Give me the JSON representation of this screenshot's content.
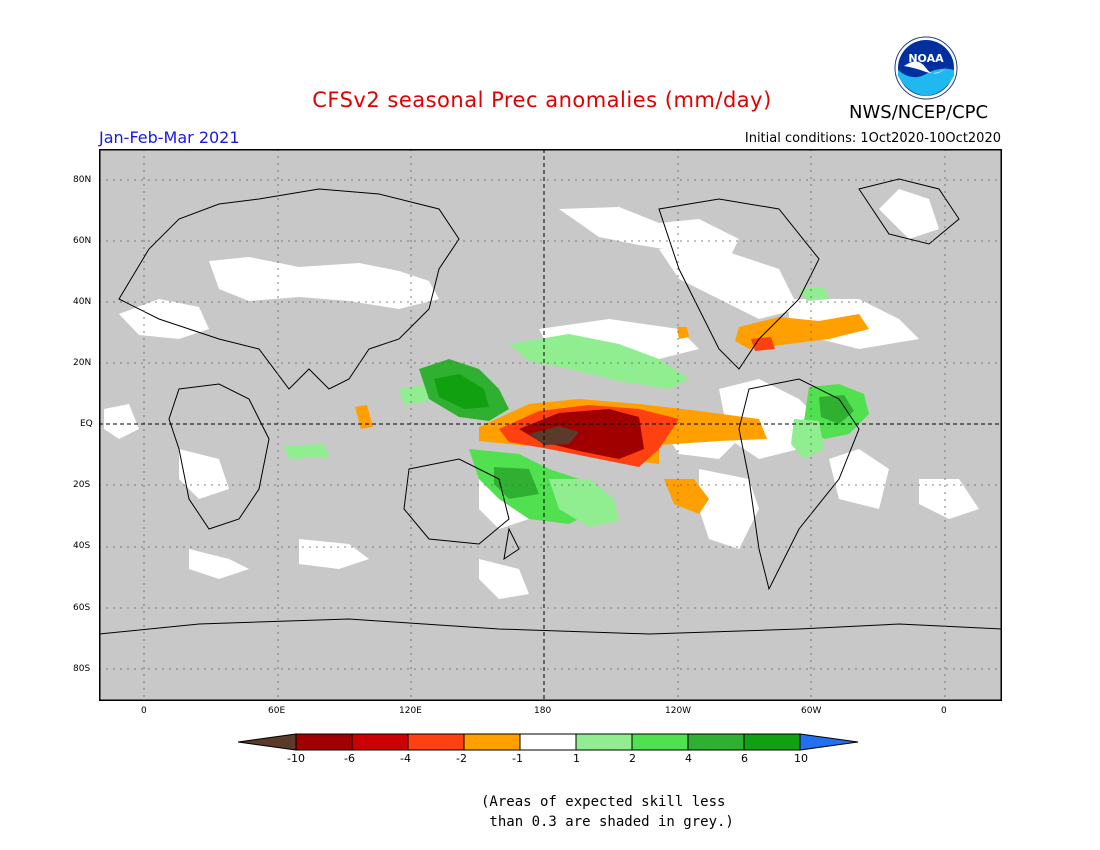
{
  "title": "CFSv2 seasonal Prec anomalies (mm/day)",
  "season": "Jan-Feb-Mar 2021",
  "initial_conditions": "Initial conditions: 1Oct2020-10Oct2020",
  "agency": "NWS/NCEP/CPC",
  "logo_text": "NOAA",
  "lat_labels": [
    "80N",
    "60N",
    "40N",
    "20N",
    "EQ",
    "20S",
    "40S",
    "60S",
    "80S"
  ],
  "lon_labels": [
    "0",
    "60E",
    "120E",
    "180",
    "120W",
    "60W",
    "0"
  ],
  "colorbar": {
    "labels": [
      "-10",
      "-6",
      "-4",
      "-2",
      "-1",
      "1",
      "2",
      "4",
      "6",
      "10"
    ],
    "colors": [
      "#5a3a2a",
      "#a00000",
      "#cc0000",
      "#ff4010",
      "#ff9f00",
      "#ffffff",
      "#90ee90",
      "#50e050",
      "#30b030",
      "#10a010",
      "#2070f0"
    ]
  },
  "colors": {
    "grey_skill_mask": "#c8c8c8",
    "land_neutral": "#ffffff",
    "title_red": "#e00000",
    "season_blue": "#1818e8"
  },
  "note": "(Areas of expected skill less\n than 0.3 are shaded in grey.)"
}
